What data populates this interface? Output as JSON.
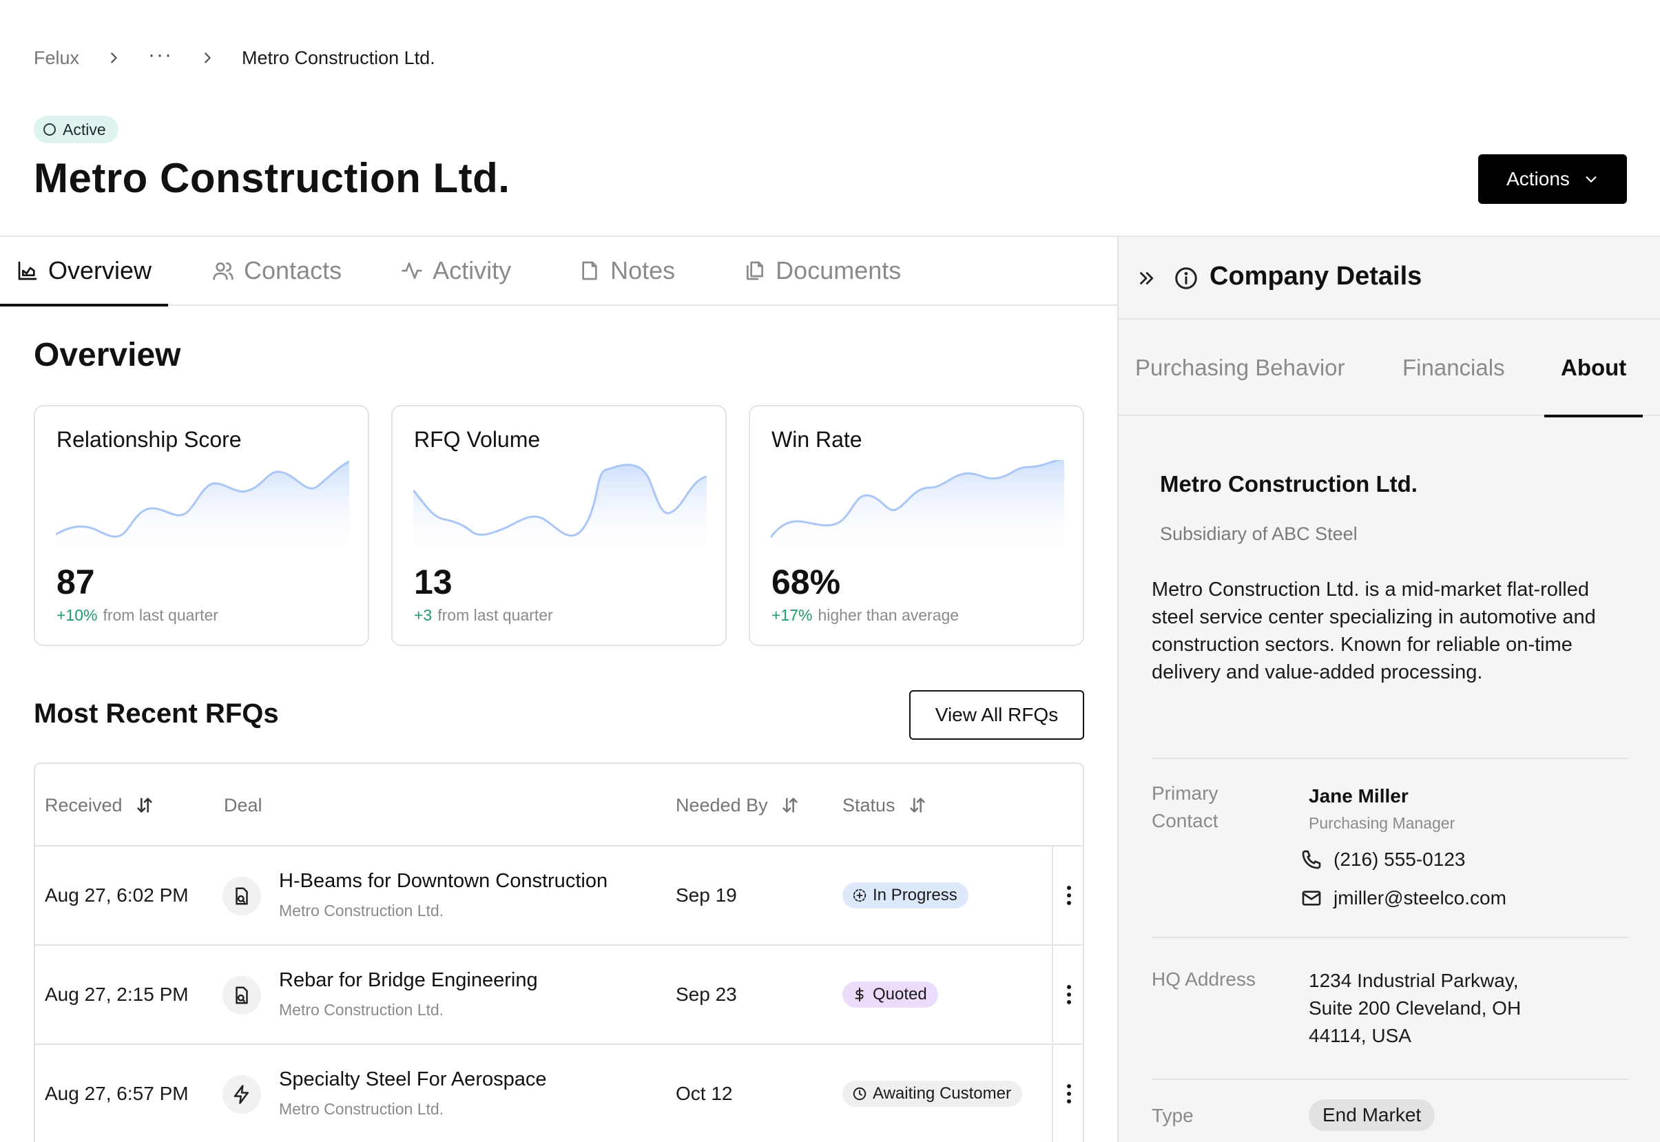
{
  "breadcrumb": {
    "root": "Felux",
    "ellipsis": "···",
    "current": "Metro Construction Ltd."
  },
  "header": {
    "status": "Active",
    "title": "Metro Construction Ltd.",
    "actions_label": "Actions"
  },
  "tabs": [
    {
      "label": "Overview",
      "icon": "chart-icon",
      "active": true
    },
    {
      "label": "Contacts",
      "icon": "users-icon"
    },
    {
      "label": "Activity",
      "icon": "activity-icon"
    },
    {
      "label": "Notes",
      "icon": "note-icon"
    },
    {
      "label": "Documents",
      "icon": "documents-icon"
    }
  ],
  "overview": {
    "title": "Overview",
    "cards": [
      {
        "title": "Relationship Score",
        "value": "87",
        "delta": "+10%",
        "sub": "from last quarter"
      },
      {
        "title": "RFQ Volume",
        "value": "13",
        "delta": "+3",
        "sub": "from last quarter"
      },
      {
        "title": "Win Rate",
        "value": "68%",
        "delta": "+17%",
        "sub": "higher than average"
      }
    ]
  },
  "rfqs": {
    "title": "Most Recent RFQs",
    "view_all": "View All RFQs",
    "columns": {
      "received": "Received",
      "deal": "Deal",
      "needed_by": "Needed By",
      "status": "Status"
    },
    "rows": [
      {
        "received": "Aug 27, 6:02 PM",
        "deal": "H-Beams for Downtown Construction",
        "company": "Metro Construction Ltd.",
        "needed_by": "Sep 19",
        "status": "In Progress",
        "status_icon": "progress-icon",
        "deal_icon": "document-icon"
      },
      {
        "received": "Aug 27, 2:15 PM",
        "deal": "Rebar for Bridge Engineering",
        "company": "Metro Construction Ltd.",
        "needed_by": "Sep 23",
        "status": "Quoted",
        "status_icon": "dollar-icon",
        "deal_icon": "document-icon"
      },
      {
        "received": "Aug 27, 6:57 PM",
        "deal": "Specialty Steel For Aerospace",
        "company": "Metro Construction Ltd.",
        "needed_by": "Oct 12",
        "status": "Awaiting Customer",
        "status_icon": "clock-icon",
        "deal_icon": "bolt-icon"
      }
    ]
  },
  "panel": {
    "title": "Company Details",
    "tabs": [
      "Purchasing Behavior",
      "Financials",
      "About"
    ],
    "active_tab": "About",
    "about": {
      "name": "Metro Construction Ltd.",
      "parent": "Subsidiary of ABC Steel",
      "description": "Metro Construction Ltd. is a mid-market flat-rolled steel service center specializing in automotive and construction sectors. Known for reliable on-time delivery and value-added processing.",
      "primary_contact_label_1": "Primary",
      "primary_contact_label_2": "Contact",
      "contact_name": "Jane Miller",
      "contact_role": "Purchasing Manager",
      "contact_phone": "(216) 555-0123",
      "contact_email": "jmiller@steelco.com",
      "hq_label": "HQ Address",
      "hq_line1": "1234 Industrial Parkway,",
      "hq_line2": "Suite 200 Cleveland, OH",
      "hq_line3": "44114, USA",
      "type_label": "Type",
      "type_value": "End Market"
    }
  },
  "colors": {
    "accent": "#000000",
    "positive": "#1f9b6a",
    "active_badge": "#dff4f1",
    "progress_badge": "#dde9fb",
    "quoted_badge": "#ecdcfc",
    "sparkline": "#a9c6f5"
  }
}
